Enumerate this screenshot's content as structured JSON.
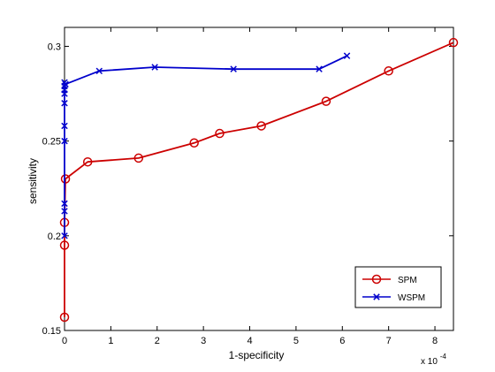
{
  "chart_data": {
    "type": "line",
    "xlabel": "1-specificity",
    "ylabel": "sensitivity",
    "x_multiplier_label": "x 10",
    "x_multiplier_exponent": "-4",
    "xlim": [
      0,
      8.4
    ],
    "ylim": [
      0.15,
      0.31
    ],
    "xticks": [
      0,
      1,
      2,
      3,
      4,
      5,
      6,
      7,
      8
    ],
    "yticks": [
      0.15,
      0.2,
      0.25,
      0.3
    ],
    "ytick_labels": [
      "0.15",
      "0.2",
      "0.25",
      "0.3"
    ],
    "grid": false,
    "legend_position": "bottom-right",
    "series": [
      {
        "name": "SPM",
        "color": "#cc0000",
        "marker": "circle",
        "x": [
          0,
          0,
          0,
          0.02,
          0.5,
          1.6,
          2.8,
          3.35,
          4.25,
          5.65,
          7.0,
          8.4
        ],
        "y": [
          0.157,
          0.195,
          0.207,
          0.23,
          0.239,
          0.241,
          0.249,
          0.254,
          0.258,
          0.271,
          0.287,
          0.302
        ]
      },
      {
        "name": "WSPM",
        "color": "#0000cc",
        "marker": "x",
        "x": [
          0,
          0,
          0,
          0,
          0,
          0,
          0,
          0,
          0,
          0,
          0.02,
          0.75,
          1.95,
          3.65,
          5.5,
          6.1
        ],
        "y": [
          0.2,
          0.213,
          0.217,
          0.25,
          0.258,
          0.27,
          0.277,
          0.279,
          0.281,
          0.275,
          0.28,
          0.287,
          0.289,
          0.288,
          0.288,
          0.295
        ]
      }
    ]
  }
}
